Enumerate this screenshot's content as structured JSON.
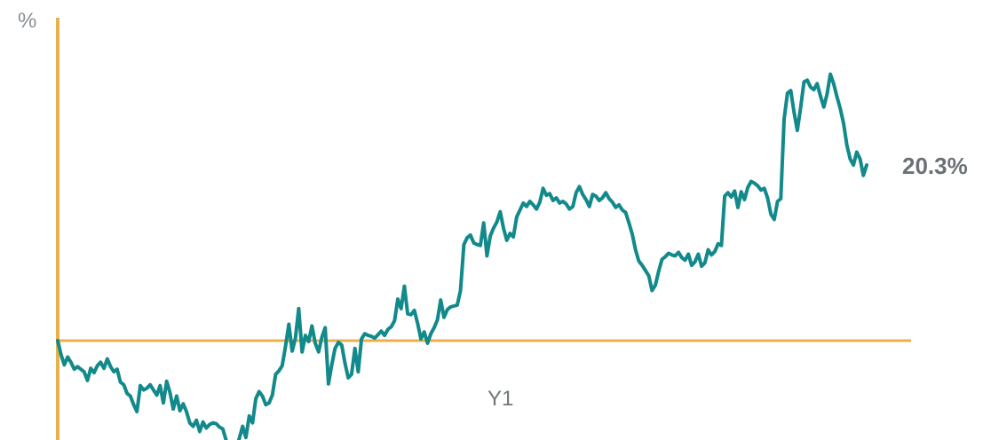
{
  "chart_data": {
    "type": "line",
    "ylabel": "%",
    "x_tick_labels": [
      "Y1"
    ],
    "end_value_label": "20.3%",
    "xlim": [
      0,
      262
    ],
    "ylim": [
      -14,
      45
    ],
    "baseline": 0,
    "colors": {
      "axis": "#e8b14a",
      "line": "#12898a"
    },
    "series": [
      {
        "values": [
          0,
          -1.6,
          -2.8,
          -1.9,
          -2.5,
          -3.3,
          -3.0,
          -3.3,
          -3.6,
          -4.6,
          -3.2,
          -3.7,
          -2.9,
          -2.5,
          -3.2,
          -2.1,
          -3.0,
          -3.6,
          -3.3,
          -4.8,
          -5.1,
          -6.1,
          -6.4,
          -7.4,
          -8.2,
          -5.2,
          -5.7,
          -5.5,
          -5.1,
          -5.7,
          -6.3,
          -5.2,
          -7.2,
          -4.7,
          -6.0,
          -7.9,
          -6.4,
          -8.1,
          -7.3,
          -8.2,
          -9.5,
          -9.9,
          -9.2,
          -10.5,
          -9.4,
          -10.1,
          -9.7,
          -9.5,
          -9.6,
          -10.0,
          -10.2,
          -11.5,
          -12.9,
          -11.8,
          -12.5,
          -11.3,
          -9.9,
          -11.2,
          -8.7,
          -9.5,
          -6.7,
          -5.9,
          -6.4,
          -7.4,
          -7.2,
          -6.3,
          -3.9,
          -3.5,
          -2.9,
          -0.6,
          1.9,
          -1.2,
          0.3,
          3.7,
          -1.3,
          0.6,
          -0.1,
          1.7,
          -0.3,
          -1.3,
          0.4,
          1.5,
          -5.0,
          -2.8,
          -0.9,
          -0.2,
          -0.5,
          -2.6,
          -4.3,
          -3.9,
          -0.9,
          -3.6,
          0.2,
          0.8,
          0.6,
          0.5,
          0.3,
          0.7,
          1.1,
          0.6,
          1.3,
          1.6,
          2.3,
          4.8,
          3.7,
          6.3,
          3.1,
          3.0,
          3.5,
          2.0,
          0.2,
          1.0,
          -0.3,
          0.8,
          1.5,
          2.4,
          4.7,
          2.7,
          3.6,
          3.9,
          4.0,
          4.1,
          5.8,
          11.1,
          11.9,
          12.2,
          11.3,
          11.1,
          11.0,
          13.6,
          9.8,
          12.1,
          13.0,
          13.7,
          14.9,
          13.0,
          11.6,
          12.4,
          12.0,
          14.3,
          15.1,
          15.9,
          15.5,
          16.1,
          15.7,
          15.2,
          16.0,
          17.6,
          16.8,
          17.0,
          16.2,
          16.5,
          15.9,
          16.1,
          15.8,
          15.2,
          15.5,
          17.1,
          17.8,
          16.9,
          16.3,
          15.5,
          16.9,
          16.7,
          16.2,
          16.5,
          17.1,
          16.4,
          16.0,
          15.4,
          15.7,
          15.1,
          14.8,
          13.6,
          12.3,
          10.5,
          9.2,
          8.7,
          8.1,
          7.5,
          5.8,
          6.4,
          8.0,
          9.4,
          9.7,
          10.1,
          9.9,
          9.8,
          10.2,
          9.6,
          9.3,
          10.0,
          8.7,
          9.1,
          10.0,
          8.6,
          9.0,
          10.5,
          9.9,
          10.3,
          11.2,
          11.0,
          16.7,
          17.1,
          16.6,
          17.3,
          15.4,
          17.2,
          16.3,
          17.7,
          18.4,
          18.2,
          17.9,
          17.4,
          17.6,
          16.5,
          14.6,
          14.0,
          16.1,
          16.4,
          25.6,
          28.6,
          28.9,
          26.4,
          24.3,
          26.9,
          29.9,
          30.1,
          29.3,
          29.0,
          29.7,
          28.3,
          27.0,
          28.5,
          30.8,
          29.7,
          28.2,
          26.8,
          25.1,
          22.6,
          21.0,
          20.3,
          21.8,
          21.0,
          19.1,
          20.3
        ]
      }
    ]
  }
}
